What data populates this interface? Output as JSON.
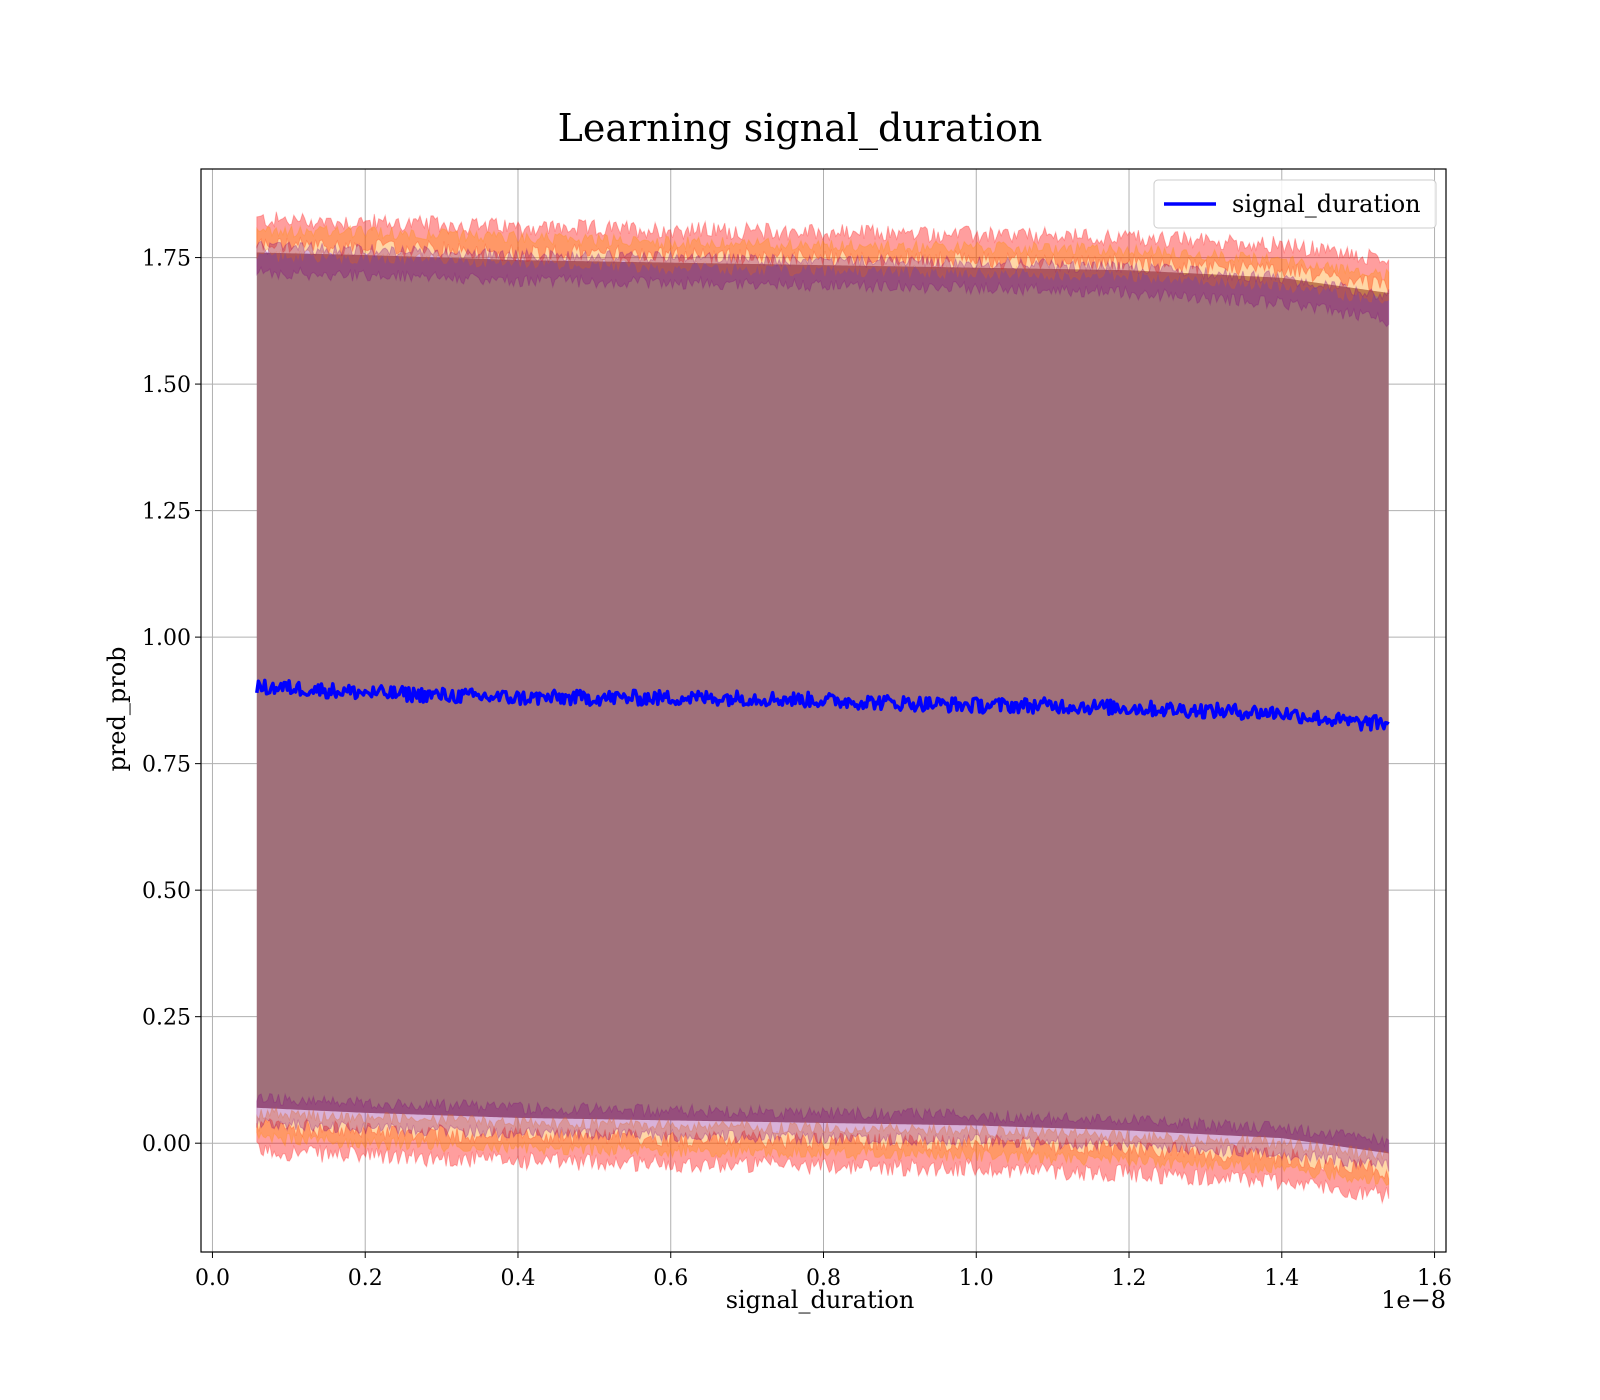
{
  "chart_data": {
    "type": "line",
    "title": "Learning signal_duration",
    "xlabel": "signal_duration",
    "ylabel": "pred_prob",
    "x_offset_label": "1e−8",
    "xlim": [
      -0.015,
      1.615
    ],
    "ylim": [
      -0.215,
      1.925
    ],
    "xticks": [
      0.0,
      0.2,
      0.4,
      0.6,
      0.8,
      1.0,
      1.2,
      1.4,
      1.6
    ],
    "xtick_labels": [
      "0.0",
      "0.2",
      "0.4",
      "0.6",
      "0.8",
      "1.0",
      "1.2",
      "1.4",
      "1.6"
    ],
    "yticks": [
      0.0,
      0.25,
      0.5,
      0.75,
      1.0,
      1.25,
      1.5,
      1.75
    ],
    "ytick_labels": [
      "0.00",
      "0.25",
      "0.50",
      "0.75",
      "1.00",
      "1.25",
      "1.50",
      "1.75"
    ],
    "grid": true,
    "legend_position": "top-right",
    "series": [
      {
        "name": "signal_duration",
        "color": "#0000ff",
        "x": [
          0.058,
          0.1,
          0.2,
          0.3,
          0.4,
          0.5,
          0.6,
          0.7,
          0.8,
          0.9,
          1.0,
          1.1,
          1.2,
          1.3,
          1.4,
          1.5,
          1.54
        ],
        "y": [
          0.9,
          0.9,
          0.89,
          0.885,
          0.88,
          0.88,
          0.88,
          0.88,
          0.875,
          0.87,
          0.865,
          0.865,
          0.86,
          0.855,
          0.85,
          0.83,
          0.83
        ]
      }
    ],
    "bands": [
      {
        "role": "outer",
        "color": "#ff0000",
        "x": [
          0.058,
          0.2,
          0.4,
          0.6,
          0.8,
          1.0,
          1.2,
          1.4,
          1.54
        ],
        "upper": [
          1.8,
          1.795,
          1.785,
          1.78,
          1.775,
          1.77,
          1.765,
          1.75,
          1.72
        ],
        "lower": [
          0.01,
          0.0,
          -0.01,
          -0.015,
          -0.02,
          -0.025,
          -0.035,
          -0.05,
          -0.08
        ]
      },
      {
        "role": "middle",
        "color": "#ff8c00",
        "x": [
          0.058,
          0.2,
          0.4,
          0.6,
          0.8,
          1.0,
          1.2,
          1.4,
          1.54
        ],
        "upper": [
          1.78,
          1.775,
          1.765,
          1.755,
          1.75,
          1.745,
          1.74,
          1.72,
          1.69
        ],
        "lower": [
          0.035,
          0.025,
          0.015,
          0.01,
          0.005,
          0.0,
          -0.01,
          -0.025,
          -0.05
        ]
      },
      {
        "role": "inner",
        "color": "#800080",
        "x": [
          0.058,
          0.2,
          0.4,
          0.6,
          0.8,
          1.0,
          1.2,
          1.4,
          1.54
        ],
        "upper": [
          1.745,
          1.74,
          1.73,
          1.725,
          1.72,
          1.715,
          1.705,
          1.685,
          1.65
        ],
        "lower": [
          0.065,
          0.055,
          0.045,
          0.04,
          0.035,
          0.03,
          0.02,
          0.005,
          -0.02
        ]
      }
    ],
    "fill_color": "#a0707a"
  }
}
